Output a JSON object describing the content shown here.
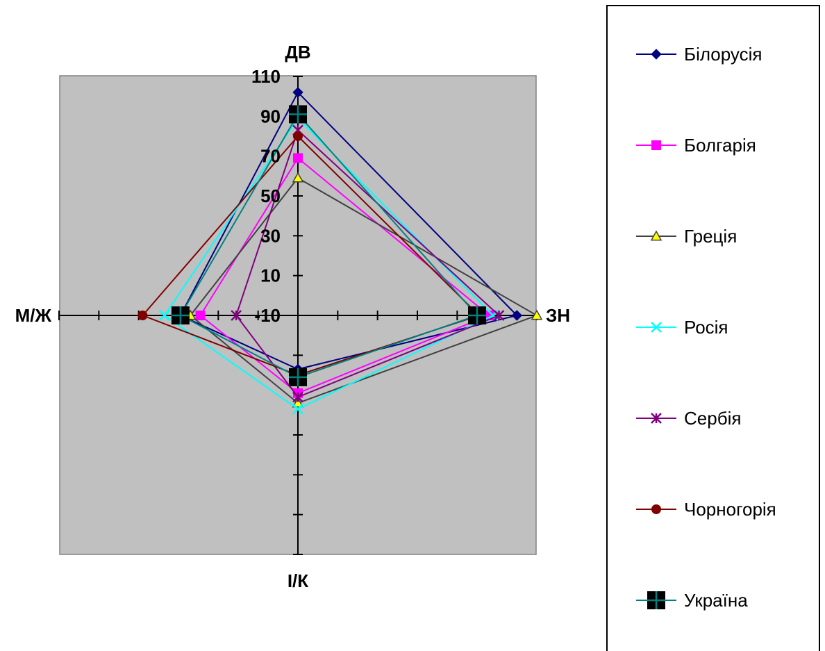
{
  "chart_data": {
    "type": "radar",
    "axes": [
      "ДВ",
      "ЗН",
      "І/К",
      "М/Ж"
    ],
    "axis_ticks": [
      "-10",
      "10",
      "30",
      "50",
      "70",
      "90",
      "110"
    ],
    "range": [
      -10,
      110
    ],
    "series": [
      {
        "name": "Білорусія",
        "color": "#000080",
        "marker": "diamond",
        "values": [
          102,
          100,
          17,
          49
        ]
      },
      {
        "name": "Болгарія",
        "color": "#FF00FF",
        "marker": "square",
        "values": [
          69,
          86,
          29,
          39
        ]
      },
      {
        "name": "Греція",
        "color": "#404040",
        "marker": "triangle",
        "values": [
          59,
          110,
          34,
          44
        ]
      },
      {
        "name": "Росія",
        "color": "#00FFFF",
        "marker": "x",
        "values": [
          89,
          88,
          37,
          57
        ]
      },
      {
        "name": "Сербія",
        "color": "#800080",
        "marker": "star",
        "values": [
          83,
          91,
          31,
          21
        ]
      },
      {
        "name": "Чорногорія",
        "color": "#800000",
        "marker": "circle",
        "values": [
          80,
          81,
          20,
          68
        ]
      },
      {
        "name": "Україна",
        "color": "#008080",
        "marker": "plus-square",
        "values": [
          91,
          80,
          21,
          49
        ]
      }
    ],
    "legend_position": "right",
    "plot_background": "#C0C0C0"
  }
}
